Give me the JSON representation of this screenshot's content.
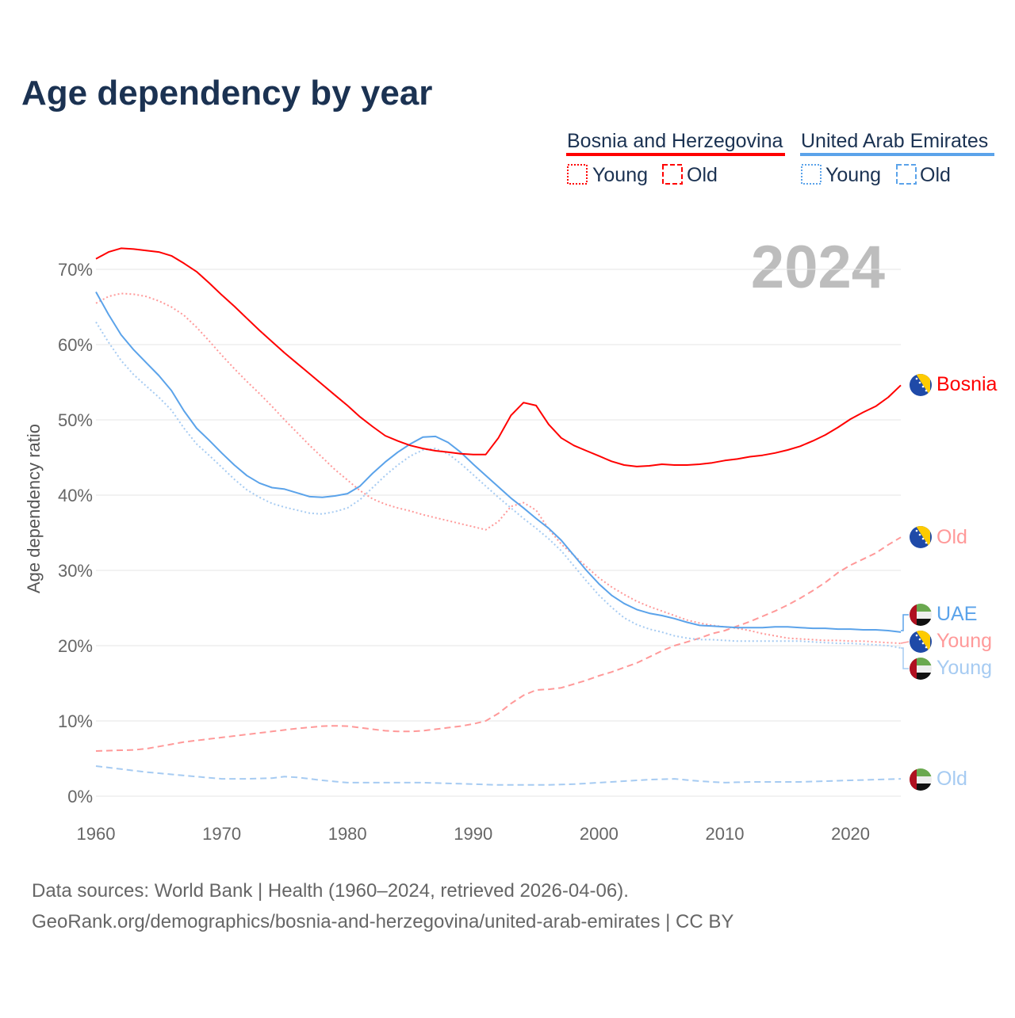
{
  "title": "Age dependency by year",
  "legend": {
    "country1": {
      "name": "Bosnia and Herzegovina",
      "young": "Young",
      "old": "Old",
      "color": "#ff0000"
    },
    "country2": {
      "name": "United Arab Emirates",
      "young": "Young",
      "old": "Old",
      "color": "#5ba3ea"
    }
  },
  "year_watermark": "2024",
  "end_labels": {
    "bosnia_total": "Bosnia",
    "bosnia_old": "Old",
    "uae_total": "UAE",
    "bosnia_young": "Young",
    "uae_young": "Young",
    "uae_old": "Old"
  },
  "footer": {
    "line1": "Data sources: World Bank | Health (1960–2024, retrieved 2026-04-06).",
    "line2": "GeoRank.org/demographics/bosnia-and-herzegovina/united-arab-emirates | CC BY"
  },
  "chart_data": {
    "type": "line",
    "title": "Age dependency by year",
    "xlabel": "",
    "ylabel": "Age dependency ratio",
    "xlim": [
      1960,
      2024
    ],
    "ylim": [
      0,
      75
    ],
    "x_ticks": [
      "1960",
      "1970",
      "1980",
      "1990",
      "2000",
      "2010",
      "2020"
    ],
    "y_ticks": [
      "0%",
      "10%",
      "20%",
      "30%",
      "40%",
      "50%",
      "60%",
      "70%"
    ],
    "grid": true,
    "x_start": 1960,
    "series": [
      {
        "name": "Bosnia and Herzegovina",
        "key": "bosnia_total",
        "color": "#ff0000",
        "style": "solid",
        "values": [
          71.4,
          72.3,
          72.8,
          72.7,
          72.5,
          72.3,
          71.8,
          70.8,
          69.7,
          68.2,
          66.6,
          65.1,
          63.5,
          61.9,
          60.4,
          58.9,
          57.5,
          56.1,
          54.7,
          53.3,
          51.9,
          50.4,
          49.1,
          47.9,
          47.2,
          46.6,
          46.2,
          45.9,
          45.7,
          45.5,
          45.4,
          45.4,
          47.6,
          50.6,
          52.3,
          51.9,
          49.4,
          47.6,
          46.6,
          45.9,
          45.2,
          44.5,
          44.0,
          43.8,
          43.9,
          44.1,
          44.0,
          44.0,
          44.1,
          44.3,
          44.6,
          44.8,
          45.1,
          45.3,
          45.6,
          46.0,
          46.5,
          47.2,
          48.0,
          49.0,
          50.1,
          51.0,
          51.8,
          53.0,
          54.6
        ]
      },
      {
        "name": "Bosnia and Herzegovina Young",
        "key": "bosnia_young",
        "color": "#ff9999",
        "style": "dotted",
        "values": [
          65.5,
          66.4,
          66.8,
          66.7,
          66.4,
          65.8,
          65.0,
          63.9,
          62.3,
          60.5,
          58.6,
          56.8,
          55.1,
          53.5,
          51.8,
          50.0,
          48.3,
          46.6,
          45.0,
          43.4,
          42.0,
          40.6,
          39.5,
          38.8,
          38.3,
          37.9,
          37.4,
          37.0,
          36.6,
          36.2,
          35.8,
          35.4,
          36.5,
          38.5,
          39.0,
          38.0,
          35.5,
          33.5,
          32.0,
          30.5,
          29.0,
          27.8,
          26.8,
          25.9,
          25.2,
          24.6,
          24.0,
          23.4,
          23.0,
          22.7,
          22.5,
          22.3,
          22.0,
          21.6,
          21.3,
          21.0,
          20.9,
          20.8,
          20.7,
          20.7,
          20.6,
          20.6,
          20.5,
          20.4,
          20.3
        ]
      },
      {
        "name": "Bosnia and Herzegovina Old",
        "key": "bosnia_old",
        "color": "#ff9999",
        "style": "dashed",
        "values": [
          6.0,
          6.05,
          6.1,
          6.15,
          6.3,
          6.6,
          6.9,
          7.2,
          7.4,
          7.6,
          7.8,
          8.0,
          8.2,
          8.4,
          8.6,
          8.8,
          9.0,
          9.15,
          9.3,
          9.35,
          9.3,
          9.1,
          8.9,
          8.7,
          8.6,
          8.6,
          8.7,
          8.9,
          9.1,
          9.3,
          9.6,
          10.0,
          11.0,
          12.3,
          13.4,
          14.1,
          14.2,
          14.4,
          14.9,
          15.4,
          16.0,
          16.5,
          17.1,
          17.7,
          18.5,
          19.3,
          20.0,
          20.5,
          21.0,
          21.6,
          22.0,
          22.6,
          23.2,
          23.9,
          24.6,
          25.4,
          26.3,
          27.3,
          28.4,
          29.7,
          30.7,
          31.5,
          32.3,
          33.4,
          34.4
        ]
      },
      {
        "name": "United Arab Emirates",
        "key": "uae_total",
        "color": "#5ba3ea",
        "style": "solid",
        "values": [
          67.0,
          64.0,
          61.3,
          59.3,
          57.6,
          55.9,
          53.9,
          51.2,
          48.9,
          47.3,
          45.6,
          44.0,
          42.6,
          41.6,
          41.0,
          40.8,
          40.3,
          39.8,
          39.7,
          39.9,
          40.2,
          41.2,
          42.9,
          44.4,
          45.7,
          46.8,
          47.7,
          47.8,
          47.0,
          45.7,
          44.1,
          42.6,
          41.1,
          39.6,
          38.3,
          36.9,
          35.6,
          34.0,
          32.0,
          30.0,
          28.2,
          26.7,
          25.6,
          24.8,
          24.3,
          24.0,
          23.6,
          23.1,
          22.7,
          22.6,
          22.5,
          22.4,
          22.4,
          22.4,
          22.5,
          22.5,
          22.4,
          22.3,
          22.3,
          22.2,
          22.2,
          22.1,
          22.1,
          22.0,
          21.8
        ]
      },
      {
        "name": "United Arab Emirates Young",
        "key": "uae_young",
        "color": "#a6cbf2",
        "style": "dotted",
        "values": [
          63.0,
          60.3,
          57.9,
          56.0,
          54.5,
          53.0,
          51.3,
          48.9,
          46.8,
          45.3,
          43.7,
          42.1,
          40.7,
          39.7,
          38.9,
          38.4,
          38.0,
          37.6,
          37.5,
          37.8,
          38.3,
          39.4,
          41.0,
          42.6,
          44.0,
          45.2,
          46.0,
          46.2,
          45.5,
          44.2,
          42.7,
          41.2,
          39.7,
          38.3,
          36.9,
          35.6,
          34.2,
          32.6,
          30.6,
          28.6,
          26.7,
          25.1,
          23.7,
          22.8,
          22.2,
          21.8,
          21.3,
          21.0,
          20.8,
          20.8,
          20.7,
          20.6,
          20.6,
          20.6,
          20.6,
          20.6,
          20.6,
          20.5,
          20.4,
          20.3,
          20.3,
          20.2,
          20.1,
          20.0,
          19.7
        ]
      },
      {
        "name": "United Arab Emirates Old",
        "key": "uae_old",
        "color": "#a6cbf2",
        "style": "dashed",
        "values": [
          4.0,
          3.8,
          3.6,
          3.4,
          3.2,
          3.05,
          2.9,
          2.75,
          2.6,
          2.45,
          2.3,
          2.3,
          2.3,
          2.35,
          2.4,
          2.6,
          2.5,
          2.3,
          2.1,
          1.95,
          1.8,
          1.8,
          1.8,
          1.8,
          1.8,
          1.8,
          1.8,
          1.75,
          1.7,
          1.65,
          1.6,
          1.55,
          1.5,
          1.5,
          1.5,
          1.5,
          1.5,
          1.55,
          1.6,
          1.7,
          1.8,
          1.9,
          2.0,
          2.1,
          2.2,
          2.25,
          2.3,
          2.15,
          2.0,
          1.9,
          1.8,
          1.85,
          1.9,
          1.9,
          1.9,
          1.9,
          1.9,
          1.95,
          2.0,
          2.05,
          2.1,
          2.15,
          2.2,
          2.25,
          2.3
        ]
      }
    ]
  }
}
